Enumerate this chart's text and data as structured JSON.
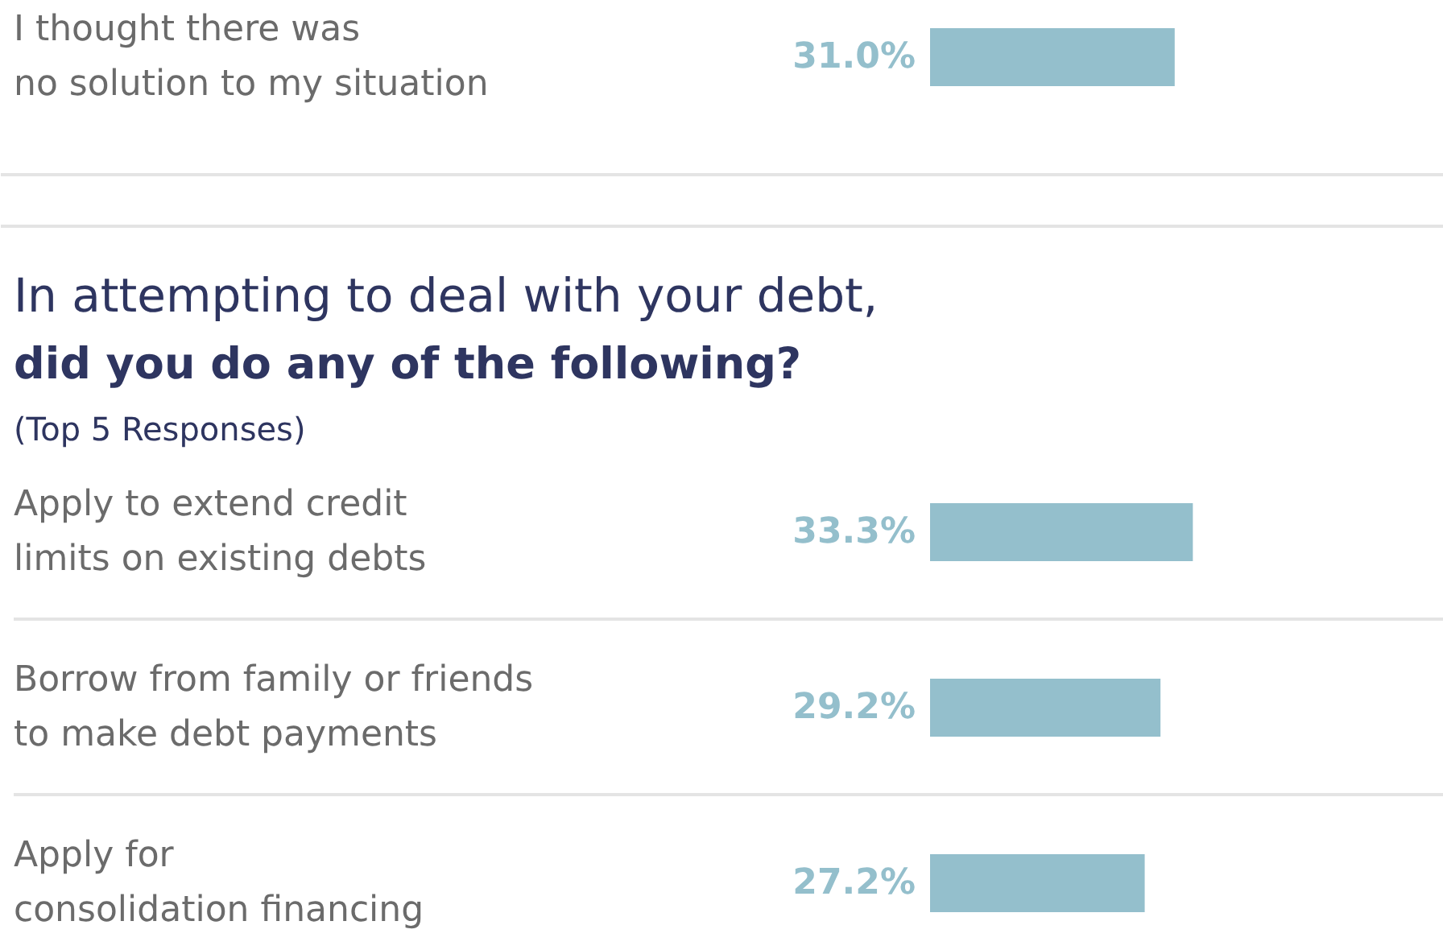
{
  "chart_data": [
    {
      "type": "bar",
      "orientation": "horizontal",
      "categories": [
        "I thought there was\nno solution to my situation"
      ],
      "values": [
        31.0
      ],
      "value_labels": [
        "31.0%"
      ],
      "color": "#94bfcc"
    },
    {
      "type": "bar",
      "orientation": "horizontal",
      "title": "In attempting to deal with your debt,",
      "subtitle": "did you do any of the following?",
      "annotations": [
        "(Top 5 Responses)"
      ],
      "categories": [
        "Apply to extend credit\nlimits on existing debts",
        "Borrow from family or friends\nto make debt payments",
        "Apply for\nconsolidation financing"
      ],
      "values": [
        33.3,
        29.2,
        27.2
      ],
      "value_labels": [
        "33.3%",
        "29.2%",
        "27.2%"
      ],
      "color": "#94bfcc"
    }
  ]
}
